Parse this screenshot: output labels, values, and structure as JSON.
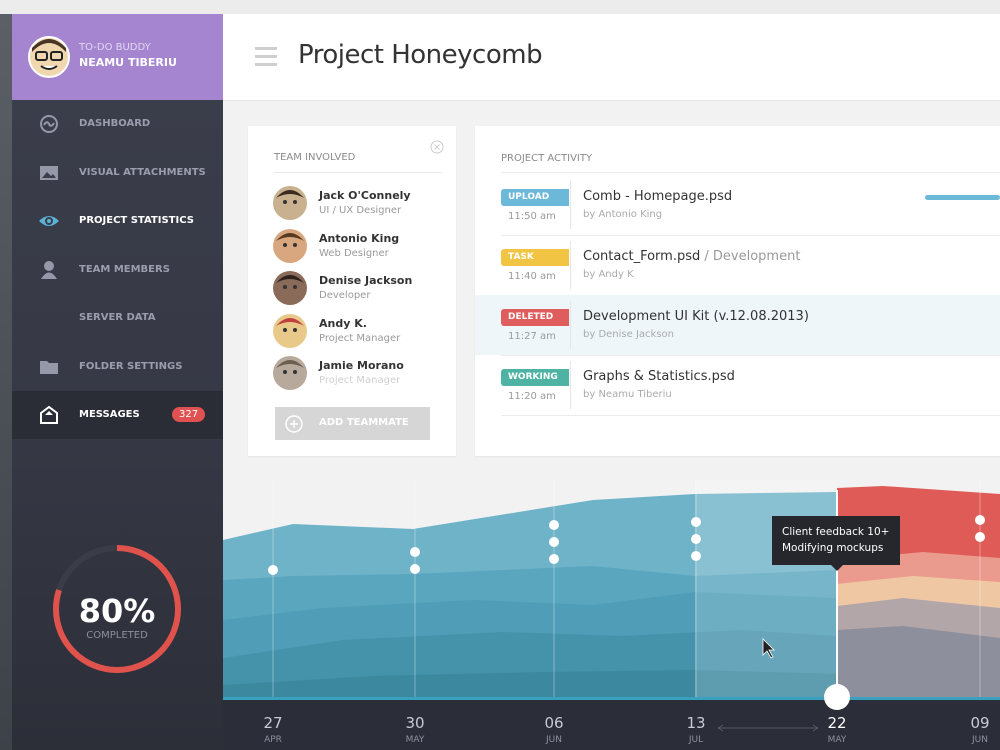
{
  "user": {
    "app": "TO-DO BUDDY",
    "name": "NEAMU TIBERIU"
  },
  "nav": [
    {
      "label": "DASHBOARD"
    },
    {
      "label": "VISUAL ATTACHMENTS"
    },
    {
      "label": "PROJECT STATISTICS"
    },
    {
      "label": "TEAM MEMBERS"
    },
    {
      "label": "SERVER DATA"
    },
    {
      "label": "FOLDER SETTINGS"
    },
    {
      "label": "MESSAGES",
      "badge": 327
    }
  ],
  "progress": {
    "value": 80,
    "label": "80%",
    "caption": "COMPLETED"
  },
  "header": {
    "title": "Project Honeycomb"
  },
  "team": {
    "title": "TEAM INVOLVED",
    "members": [
      {
        "name": "Jack O'Connely",
        "role": "UI / UX Designer"
      },
      {
        "name": "Antonio King",
        "role": "Web Designer"
      },
      {
        "name": "Denise Jackson",
        "role": "Developer"
      },
      {
        "name": "Andy K.",
        "role": "Project Manager"
      },
      {
        "name": "Jamie Morano",
        "role": "Project Manager"
      }
    ],
    "button": "ADD TEAMMATE"
  },
  "activity": {
    "title": "PROJECT ACTIVITY",
    "items": [
      {
        "tag": "UPLOAD",
        "time": "11:50 am",
        "file": "Comb - Homepage.psd",
        "by": "by Antonio King"
      },
      {
        "tag": "TASK",
        "time": "11:40 am",
        "file": "Contact_Form.psd",
        "category": "/ Development",
        "by": "by Andy K"
      },
      {
        "tag": "DELETED",
        "time": "11:27 am",
        "file": "Development UI Kit (v.12.08.2013)",
        "by": "by Denise Jackson"
      },
      {
        "tag": "WORKING",
        "time": "11:20 am",
        "file": "Graphs & Statistics.psd",
        "by": "by Neamu Tiberiu"
      }
    ]
  },
  "tooltip": {
    "lines": [
      "Client feedback 10+",
      "Modifying mockups"
    ]
  },
  "timeline": [
    {
      "day": "27",
      "month": "APR"
    },
    {
      "day": "30",
      "month": "MAY"
    },
    {
      "day": "06",
      "month": "JUN"
    },
    {
      "day": "13",
      "month": "JUL"
    },
    {
      "day": "22",
      "month": "MAY"
    },
    {
      "day": "09",
      "month": "JUN"
    }
  ]
}
